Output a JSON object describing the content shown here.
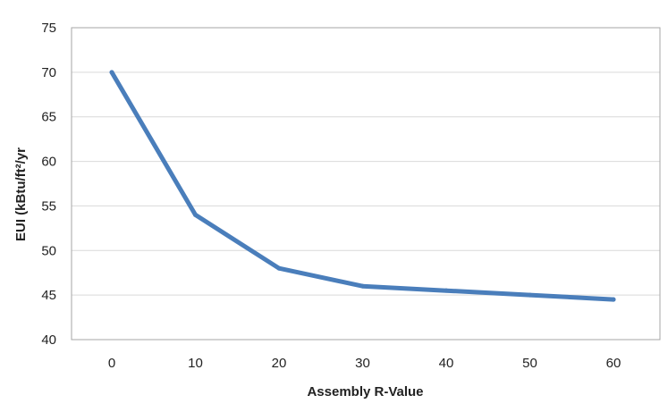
{
  "chart_data": {
    "type": "line",
    "title": "",
    "xlabel": "Assembly R-Value",
    "ylabel": "EUI (kBtu/ft²/yr",
    "x_ticks": [
      "0",
      "10",
      "20",
      "30",
      "40",
      "50",
      "60"
    ],
    "y_ticks": [
      "40",
      "45",
      "50",
      "55",
      "60",
      "65",
      "70",
      "75"
    ],
    "xlim": [
      0,
      60
    ],
    "ylim": [
      40,
      75
    ],
    "grid": "horizontal",
    "legend": "none",
    "series": [
      {
        "color": "#4A7EBB",
        "points": [
          {
            "x": 0,
            "y": 70
          },
          {
            "x": 10,
            "y": 54
          },
          {
            "x": 20,
            "y": 48
          },
          {
            "x": 30,
            "y": 46
          },
          {
            "x": 40,
            "y": 45.5
          },
          {
            "x": 50,
            "y": 45
          },
          {
            "x": 60,
            "y": 44.5
          }
        ]
      }
    ]
  }
}
